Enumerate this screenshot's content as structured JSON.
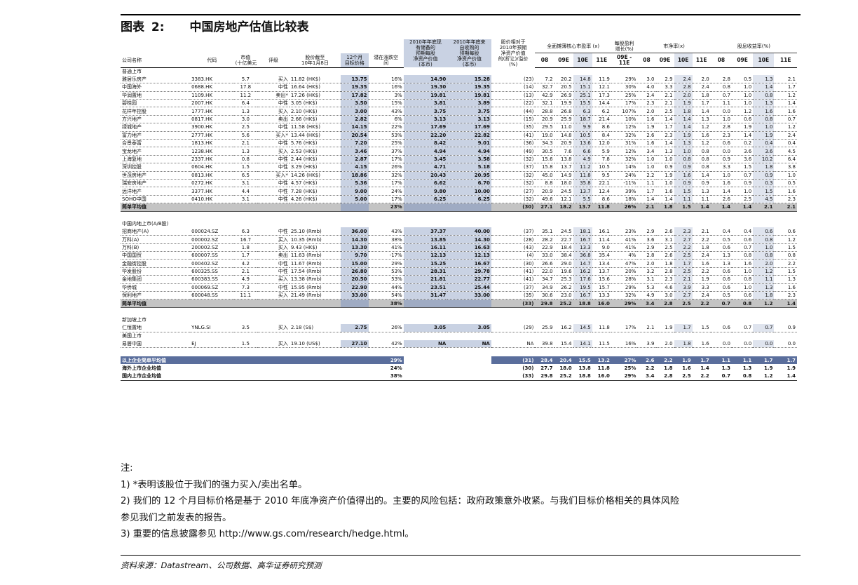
{
  "title": {
    "label": "图表",
    "number": "2:",
    "text": "中国房地产估值比较表"
  },
  "headers": {
    "company": "公司名称",
    "code": "代码",
    "mcap": [
      "市值",
      "(十亿美元)"
    ],
    "rating": "评级",
    "price": [
      "股价截至",
      "10年1月8日"
    ],
    "target": [
      "12个月",
      "目标价格"
    ],
    "upside": [
      "潜在涨跌空",
      "间"
    ],
    "nav_book": [
      "2010年年底现",
      "有储备的",
      "预期每股",
      "净资产价值",
      "(本币)"
    ],
    "nav_acq": [
      "2010年年底来",
      "自收购的",
      "预期每股",
      "净资产价值",
      "(本币)"
    ],
    "prem": [
      "股价相对于",
      "2010年预期",
      "净资产价值",
      "的(折让)/溢价",
      "(%)"
    ],
    "pe_group": "全面摊薄核心市盈率 (x)",
    "eps_group": [
      "每股盈利",
      "增长(%)"
    ],
    "pb_group": "市净率(x)",
    "div_group": "股息收益率(%)",
    "years": [
      "08",
      "09E",
      "10E",
      "11E"
    ],
    "eps_year": [
      "09E -",
      "11E"
    ]
  },
  "sections": [
    {
      "title": "普通上市",
      "rows": [
        [
          "雅居乐房产",
          "3383.HK",
          "5.7",
          "买入",
          "11.82 (HK$)",
          "13.75",
          "16%",
          "14.90",
          "15.28",
          "(23)",
          "7.2",
          "20.2",
          "14.8",
          "11.9",
          "29%",
          "3.0",
          "2.9",
          "2.4",
          "2.0",
          "2.8",
          "0.5",
          "1.3",
          "2.1"
        ],
        [
          "中国海外",
          "0688.HK",
          "17.8",
          "中性",
          "16.64 (HK$)",
          "19.35",
          "16%",
          "19.30",
          "19.35",
          "(14)",
          "32.7",
          "20.5",
          "15.1",
          "12.1",
          "30%",
          "4.0",
          "3.3",
          "2.8",
          "2.4",
          "0.8",
          "1.0",
          "1.4",
          "1.7"
        ],
        [
          "华润置地",
          "1109.HK",
          "11.2",
          "卖出*",
          "17.26 (HK$)",
          "17.82",
          "3%",
          "19.81",
          "19.81",
          "(13)",
          "42.9",
          "26.9",
          "25.1",
          "17.3",
          "25%",
          "2.4",
          "2.1",
          "2.0",
          "1.8",
          "0.7",
          "1.0",
          "0.8",
          "1.2"
        ],
        [
          "碧桂园",
          "2007.HK",
          "6.4",
          "中性",
          "3.05 (HK$)",
          "3.50",
          "15%",
          "3.81",
          "3.89",
          "(22)",
          "32.1",
          "19.9",
          "15.5",
          "14.4",
          "17%",
          "2.3",
          "2.1",
          "1.9",
          "1.7",
          "1.1",
          "1.0",
          "1.3",
          "1.4"
        ],
        [
          "花样年控股",
          "1777.HK",
          "1.3",
          "买入",
          "2.10 (HK$)",
          "3.00",
          "43%",
          "3.75",
          "3.75",
          "(44)",
          "28.8",
          "26.8",
          "6.3",
          "6.2",
          "107%",
          "2.0",
          "2.5",
          "1.8",
          "1.4",
          "0.0",
          "1.2",
          "1.6",
          "1.6"
        ],
        [
          "方兴地产",
          "0817.HK",
          "3.0",
          "卖出",
          "2.66 (HK$)",
          "2.82",
          "6%",
          "3.13",
          "3.13",
          "(15)",
          "20.9",
          "25.9",
          "18.7",
          "21.4",
          "10%",
          "1.6",
          "1.4",
          "1.4",
          "1.3",
          "1.0",
          "0.6",
          "0.8",
          "0.7"
        ],
        [
          "绿城地产",
          "3900.HK",
          "2.5",
          "中性",
          "11.58 (HK$)",
          "14.15",
          "22%",
          "17.69",
          "17.69",
          "(35)",
          "29.5",
          "11.0",
          "9.9",
          "8.6",
          "12%",
          "1.9",
          "1.7",
          "1.4",
          "1.2",
          "2.8",
          "1.9",
          "1.0",
          "1.2"
        ],
        [
          "富力地产",
          "2777.HK",
          "5.6",
          "买入*",
          "13.44 (HK$)",
          "20.54",
          "53%",
          "22.20",
          "22.82",
          "(41)",
          "19.0",
          "14.8",
          "10.5",
          "8.4",
          "32%",
          "2.6",
          "2.3",
          "1.9",
          "1.6",
          "2.3",
          "1.4",
          "1.9",
          "2.4"
        ],
        [
          "合景泰富",
          "1813.HK",
          "2.1",
          "中性",
          "5.76 (HK$)",
          "7.20",
          "25%",
          "8.42",
          "9.01",
          "(36)",
          "34.3",
          "20.9",
          "13.6",
          "12.0",
          "31%",
          "1.6",
          "1.4",
          "1.3",
          "1.2",
          "0.6",
          "0.2",
          "0.4",
          "0.4"
        ],
        [
          "宝龙地产",
          "1238.HK",
          "1.3",
          "买入",
          "2.53 (HK$)",
          "3.46",
          "37%",
          "4.94",
          "4.94",
          "(49)",
          "30.5",
          "7.6",
          "6.6",
          "5.9",
          "12%",
          "3.4",
          "1.3",
          "1.0",
          "0.8",
          "0.0",
          "3.6",
          "3.6",
          "4.5"
        ],
        [
          "上海复地",
          "2337.HK",
          "0.8",
          "中性",
          "2.44 (HK$)",
          "2.87",
          "17%",
          "3.45",
          "3.58",
          "(32)",
          "15.6",
          "13.8",
          "4.9",
          "7.8",
          "32%",
          "1.0",
          "1.0",
          "0.8",
          "0.8",
          "0.9",
          "3.6",
          "10.2",
          "6.4"
        ],
        [
          "深圳控股",
          "0604.HK",
          "1.5",
          "中性",
          "3.29 (HK$)",
          "4.15",
          "26%",
          "4.71",
          "5.18",
          "(37)",
          "15.8",
          "13.7",
          "11.2",
          "10.5",
          "14%",
          "1.0",
          "0.9",
          "0.9",
          "0.8",
          "3.3",
          "1.5",
          "1.8",
          "3.8"
        ],
        [
          "世茂房地产",
          "0813.HK",
          "6.5",
          "买入*",
          "14.26 (HK$)",
          "18.86",
          "32%",
          "20.43",
          "20.95",
          "(32)",
          "45.0",
          "14.9",
          "11.8",
          "9.5",
          "24%",
          "2.2",
          "1.9",
          "1.6",
          "1.4",
          "1.0",
          "0.7",
          "0.9",
          "1.0"
        ],
        [
          "瑞安房地产",
          "0272.HK",
          "3.1",
          "中性",
          "4.57 (HK$)",
          "5.36",
          "17%",
          "6.62",
          "6.70",
          "(32)",
          "8.8",
          "18.0",
          "35.8",
          "22.1",
          "-11%",
          "1.1",
          "1.0",
          "0.9",
          "0.9",
          "1.6",
          "0.9",
          "0.3",
          "0.5"
        ],
        [
          "远洋地产",
          "3377.HK",
          "4.4",
          "中性",
          "7.28 (HK$)",
          "9.00",
          "24%",
          "9.80",
          "10.00",
          "(27)",
          "20.9",
          "24.5",
          "13.7",
          "12.4",
          "39%",
          "1.7",
          "1.6",
          "1.5",
          "1.3",
          "1.4",
          "1.0",
          "1.5",
          "1.6"
        ],
        [
          "SOHO中国",
          "0410.HK",
          "3.1",
          "中性",
          "4.26 (HK$)",
          "5.00",
          "17%",
          "6.25",
          "6.25",
          "(32)",
          "49.6",
          "12.1",
          "5.5",
          "8.6",
          "18%",
          "1.4",
          "1.4",
          "1.1",
          "1.1",
          "2.6",
          "2.5",
          "4.5",
          "2.3"
        ]
      ],
      "avg": [
        "简单平均值",
        "",
        "",
        "",
        "",
        "",
        "23%",
        "",
        "",
        "(30)",
        "27.1",
        "18.2",
        "13.7",
        "11.8",
        "26%",
        "2.1",
        "1.8",
        "1.5",
        "1.4",
        "1.4",
        "1.4",
        "2.1",
        "2.1"
      ]
    },
    {
      "title": "中国内地上市(A/B股)",
      "rows": [
        [
          "招商地产(A)",
          "000024.SZ",
          "6.3",
          "中性",
          "25.10 (Rmb)",
          "36.00",
          "43%",
          "37.37",
          "40.00",
          "(37)",
          "35.1",
          "24.5",
          "18.1",
          "16.1",
          "23%",
          "2.9",
          "2.6",
          "2.3",
          "2.1",
          "0.4",
          "0.4",
          "0.6",
          "0.6"
        ],
        [
          "万科(A)",
          "000002.SZ",
          "16.7",
          "买入",
          "10.35 (Rmb)",
          "14.30",
          "38%",
          "13.85",
          "14.30",
          "(28)",
          "28.2",
          "22.7",
          "16.7",
          "11.4",
          "41%",
          "3.6",
          "3.1",
          "2.7",
          "2.2",
          "0.5",
          "0.6",
          "0.8",
          "1.2"
        ],
        [
          "万科(B)",
          "200002.SZ",
          "1.8",
          "买入",
          "9.43 (HK$)",
          "13.30",
          "41%",
          "16.11",
          "16.63",
          "(43)",
          "22.9",
          "18.4",
          "13.3",
          "9.0",
          "41%",
          "2.9",
          "2.5",
          "2.2",
          "1.8",
          "0.6",
          "0.7",
          "1.0",
          "1.5"
        ],
        [
          "中国国贸",
          "600007.SS",
          "1.7",
          "卖出",
          "11.63 (Rmb)",
          "9.70",
          "-17%",
          "12.13",
          "12.13",
          "(4)",
          "33.0",
          "38.4",
          "36.8",
          "35.4",
          "4%",
          "2.8",
          "2.6",
          "2.5",
          "2.4",
          "1.3",
          "0.8",
          "0.8",
          "0.8"
        ],
        [
          "金融街控股",
          "000402.SZ",
          "4.2",
          "中性",
          "11.67 (Rmb)",
          "15.00",
          "29%",
          "15.25",
          "16.67",
          "(30)",
          "26.6",
          "29.0",
          "14.7",
          "13.4",
          "47%",
          "2.0",
          "1.8",
          "1.7",
          "1.6",
          "1.3",
          "1.6",
          "2.0",
          "2.2"
        ],
        [
          "华发股份",
          "600325.SS",
          "2.1",
          "中性",
          "17.54 (Rmb)",
          "26.80",
          "53%",
          "28.31",
          "29.78",
          "(41)",
          "22.0",
          "19.6",
          "16.2",
          "13.7",
          "20%",
          "3.2",
          "2.8",
          "2.5",
          "2.2",
          "0.6",
          "1.0",
          "1.2",
          "1.5"
        ],
        [
          "金地集团",
          "600383.SS",
          "4.9",
          "买入",
          "13.38 (Rmb)",
          "20.50",
          "53%",
          "21.81",
          "22.77",
          "(41)",
          "34.7",
          "25.3",
          "17.6",
          "15.6",
          "28%",
          "3.1",
          "2.3",
          "2.1",
          "1.9",
          "0.6",
          "0.8",
          "1.1",
          "1.3"
        ],
        [
          "华侨城",
          "000069.SZ",
          "7.3",
          "中性",
          "15.95 (Rmb)",
          "22.90",
          "44%",
          "23.51",
          "25.44",
          "(37)",
          "34.9",
          "26.2",
          "19.5",
          "15.7",
          "29%",
          "5.3",
          "4.6",
          "3.9",
          "3.3",
          "0.6",
          "1.0",
          "1.3",
          "1.6"
        ],
        [
          "保利地产",
          "600048.SS",
          "11.1",
          "买入",
          "21.49 (Rmb)",
          "33.00",
          "54%",
          "31.47",
          "33.00",
          "(35)",
          "30.6",
          "23.0",
          "16.7",
          "13.3",
          "32%",
          "4.9",
          "3.0",
          "2.7",
          "2.4",
          "0.5",
          "0.6",
          "1.8",
          "2.3"
        ]
      ],
      "avg": [
        "简单平均值",
        "",
        "",
        "",
        "",
        "",
        "38%",
        "",
        "",
        "(33)",
        "29.8",
        "25.2",
        "18.8",
        "16.0",
        "29%",
        "3.4",
        "2.8",
        "2.5",
        "2.2",
        "0.7",
        "0.8",
        "1.2",
        "1.4"
      ]
    }
  ],
  "sg": {
    "title": "新加坡上市",
    "row": [
      "仁恒置地",
      "YNLG.SI",
      "3.5",
      "买入",
      "2.18 (S$)",
      "2.75",
      "26%",
      "3.05",
      "3.05",
      "(29)",
      "25.9",
      "16.2",
      "14.5",
      "11.8",
      "17%",
      "2.1",
      "1.9",
      "1.7",
      "1.5",
      "0.6",
      "0.7",
      "0.7",
      "0.9"
    ]
  },
  "us": {
    "title": "美国上市",
    "row": [
      "易居中国",
      "EJ",
      "1.5",
      "买入",
      "19.10 (US$)",
      "27.10",
      "42%",
      "NA",
      "NA",
      "NA",
      "39.8",
      "15.4",
      "14.1",
      "11.5",
      "16%",
      "3.9",
      "2.0",
      "1.8",
      "1.6",
      "0.0",
      "0.0",
      "0.0",
      "0.0"
    ]
  },
  "totals": [
    [
      "以上企业简单平均值",
      "29%",
      "(31)",
      "28.4",
      "20.4",
      "15.5",
      "13.2",
      "27%",
      "2.6",
      "2.2",
      "1.9",
      "1.7",
      "1.1",
      "1.1",
      "1.7",
      "1.7"
    ],
    [
      "海外上市企业均值",
      "24%",
      "(30)",
      "27.7",
      "18.0",
      "13.8",
      "11.8",
      "25%",
      "2.2",
      "1.8",
      "1.6",
      "1.4",
      "1.3",
      "1.3",
      "1.9",
      "1.9"
    ],
    [
      "国内上市企业均值",
      "38%",
      "(33)",
      "29.8",
      "25.2",
      "18.8",
      "16.0",
      "29%",
      "3.4",
      "2.8",
      "2.5",
      "2.2",
      "0.7",
      "0.8",
      "1.2",
      "1.4"
    ]
  ],
  "notes": [
    "注:",
    "1) *表明该股位于我们的强力买入/卖出名单。",
    "2) 我们的 12 个月目标价格是基于 2010 年底净资产价值得出的。主要的风险包括：政府政策意外收紧。与我们目标价格相关的具体风险",
    "参见我们之前发表的报告。",
    "3) 重要的信息披露参见 http://www.gs.com/research/hedge.html。"
  ],
  "source": "资料来源：Datastream、公司数据、高华证券研究预测"
}
